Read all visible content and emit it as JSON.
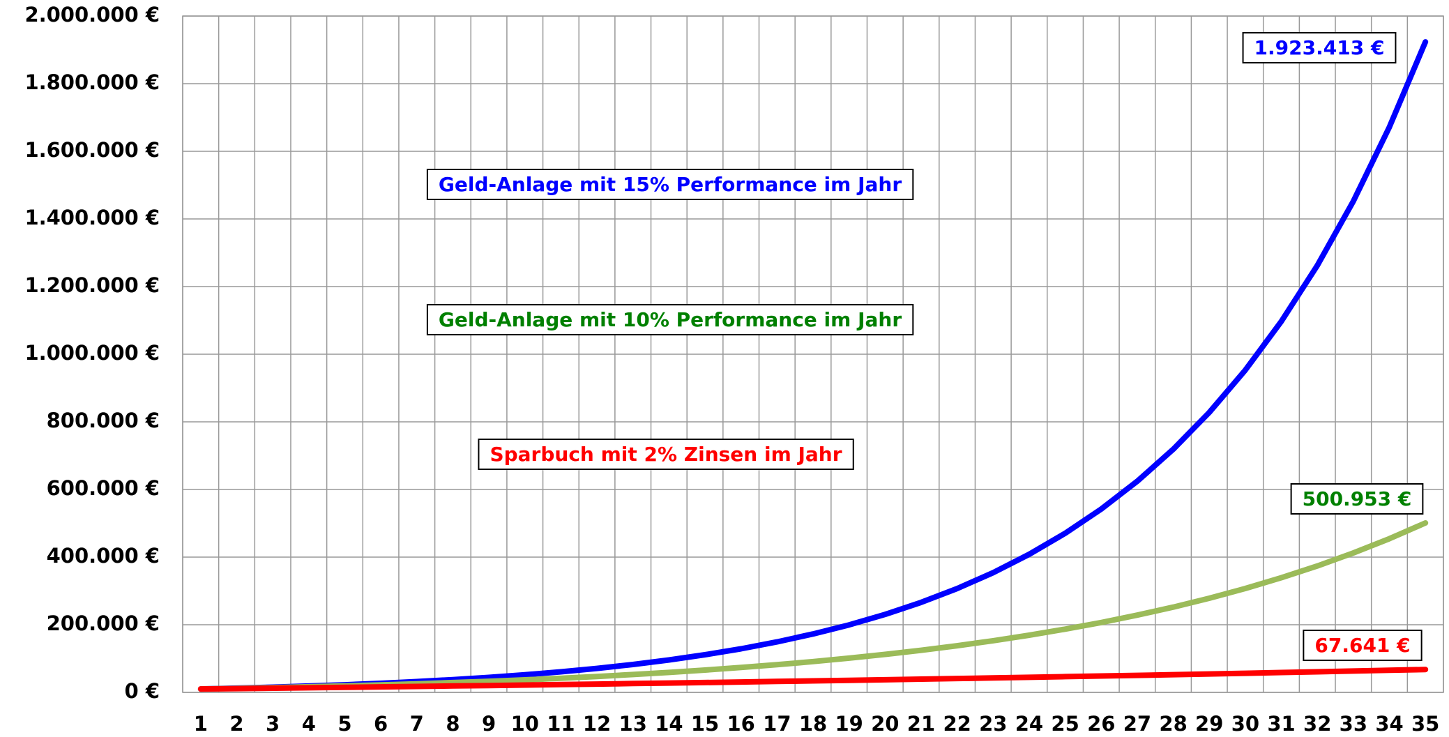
{
  "chart_data": {
    "type": "line",
    "categories": [
      "1",
      "2",
      "3",
      "4",
      "5",
      "6",
      "7",
      "8",
      "9",
      "10",
      "11",
      "12",
      "13",
      "14",
      "15",
      "16",
      "17",
      "18",
      "19",
      "20",
      "21",
      "22",
      "23",
      "24",
      "25",
      "26",
      "27",
      "28",
      "29",
      "30",
      "31",
      "32",
      "33",
      "34",
      "35"
    ],
    "ylim": [
      0,
      2000000
    ],
    "yticks": [
      {
        "value": 0,
        "label": "0 €"
      },
      {
        "value": 200000,
        "label": "200.000 €"
      },
      {
        "value": 400000,
        "label": "400.000 €"
      },
      {
        "value": 600000,
        "label": "600.000 €"
      },
      {
        "value": 800000,
        "label": "800.000 €"
      },
      {
        "value": 1000000,
        "label": "1.000.000 €"
      },
      {
        "value": 1200000,
        "label": "1.200.000 €"
      },
      {
        "value": 1400000,
        "label": "1.400.000 €"
      },
      {
        "value": 1600000,
        "label": "1.600.000 €"
      },
      {
        "value": 1800000,
        "label": "1.800.000 €"
      },
      {
        "value": 2000000,
        "label": "2.000.000 €"
      }
    ],
    "grid": true,
    "series": [
      {
        "name": "Geld-Anlage mit 15% Performance im Jahr",
        "color": "#0000ff",
        "text_color": "#0000ff",
        "end_label": "1.923.413 €",
        "values": [
          10000,
          12500,
          15375,
          18681,
          22483,
          26856,
          31884,
          37667,
          44317,
          51965,
          60759,
          70873,
          82504,
          95880,
          111262,
          128951,
          149294,
          172688,
          199591,
          230530,
          266109,
          307025,
          354079,
          408191,
          470420,
          541983,
          624280,
          718922,
          827760,
          952924,
          1096863,
          1262392,
          1452751,
          1671664,
          1923413
        ]
      },
      {
        "name": "Geld-Anlage mit 10% Performance im Jahr",
        "color": "#9bbb59",
        "text_color": "#008000",
        "end_label": "500.953 €",
        "values": [
          10000,
          12000,
          14200,
          16620,
          19282,
          22210,
          25431,
          28974,
          32872,
          37159,
          41875,
          47062,
          52769,
          59045,
          65950,
          73545,
          81899,
          91089,
          101198,
          112318,
          124550,
          138005,
          152805,
          169086,
          186995,
          206694,
          228364,
          252200,
          278420,
          307262,
          338988,
          373887,
          412276,
          454503,
          500953
        ]
      },
      {
        "name": "Sparbuch mit 2% Zinsen im Jahr",
        "color": "#ff0000",
        "text_color": "#ff0000",
        "end_label": "67.641 €",
        "values": [
          10000,
          11200,
          12424,
          13672,
          14944,
          16246,
          17572,
          18922,
          20302,
          21706,
          23140,
          24604,
          26092,
          27616,
          29170,
          30754,
          32368,
          34012,
          35692,
          37408,
          39154,
          40942,
          42760,
          44614,
          46504,
          48436,
          50404,
          52414,
          54460,
          56548,
          58684,
          60856,
          63070,
          65332,
          67641
        ]
      }
    ]
  }
}
